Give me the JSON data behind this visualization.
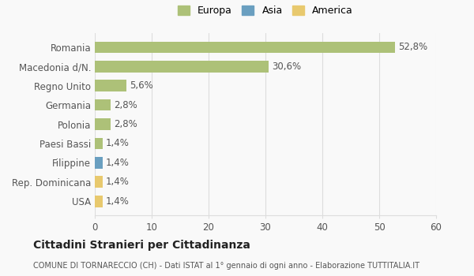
{
  "categories": [
    "Romania",
    "Macedonia d/N.",
    "Regno Unito",
    "Germania",
    "Polonia",
    "Paesi Bassi",
    "Filippine",
    "Rep. Dominicana",
    "USA"
  ],
  "values": [
    52.8,
    30.6,
    5.6,
    2.8,
    2.8,
    1.4,
    1.4,
    1.4,
    1.4
  ],
  "labels": [
    "52,8%",
    "30,6%",
    "5,6%",
    "2,8%",
    "2,8%",
    "1,4%",
    "1,4%",
    "1,4%",
    "1,4%"
  ],
  "colors": [
    "#adc178",
    "#adc178",
    "#adc178",
    "#adc178",
    "#adc178",
    "#adc178",
    "#6a9fc0",
    "#e8c96e",
    "#e8c96e"
  ],
  "continent": [
    "Europa",
    "Europa",
    "Europa",
    "Europa",
    "Europa",
    "Europa",
    "Asia",
    "America",
    "America"
  ],
  "legend_labels": [
    "Europa",
    "Asia",
    "America"
  ],
  "legend_colors": [
    "#adc178",
    "#6a9fc0",
    "#e8c96e"
  ],
  "title": "Cittadini Stranieri per Cittadinanza",
  "subtitle": "COMUNE DI TORNARECCIO (CH) - Dati ISTAT al 1° gennaio di ogni anno - Elaborazione TUTTITALIA.IT",
  "xlim": [
    0,
    60
  ],
  "xticks": [
    0,
    10,
    20,
    30,
    40,
    50,
    60
  ],
  "bg_color": "#f9f9f9",
  "bar_height": 0.6,
  "grid_color": "#dddddd",
  "label_fontsize": 8.5,
  "tick_fontsize": 8.5
}
